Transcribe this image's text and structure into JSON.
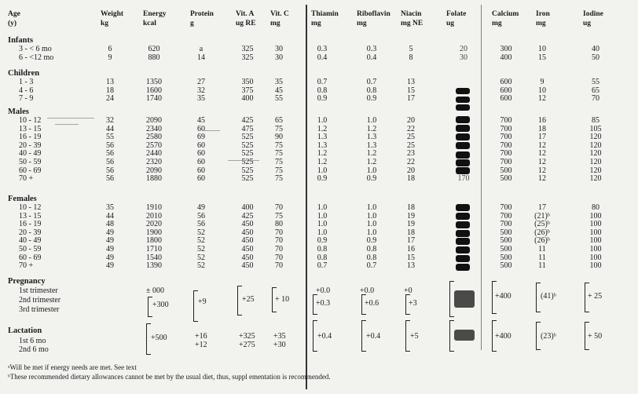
{
  "headers": [
    {
      "key": "age",
      "l1": "Age",
      "l2": "(y)"
    },
    {
      "key": "weight",
      "l1": "Weight",
      "l2": "kg"
    },
    {
      "key": "energy",
      "l1": "Energy",
      "l2": "kcal"
    },
    {
      "key": "protein",
      "l1": "Protein",
      "l2": "g"
    },
    {
      "key": "vita",
      "l1": "Vit. A",
      "l2": "ug RE"
    },
    {
      "key": "vitc",
      "l1": "Vit. C",
      "l2": "mg"
    },
    {
      "key": "thiamin",
      "l1": "Thiamin",
      "l2": "mg"
    },
    {
      "key": "riboflavin",
      "l1": "Riboflavin",
      "l2": "mg"
    },
    {
      "key": "niacin",
      "l1": "Niacin",
      "l2": "mg NE"
    },
    {
      "key": "folate",
      "l1": "Folate",
      "l2": "ug"
    },
    {
      "key": "calcium",
      "l1": "Calcium",
      "l2": "mg"
    },
    {
      "key": "iron",
      "l1": "Iron",
      "l2": "mg"
    },
    {
      "key": "iodine",
      "l1": "Iodine",
      "l2": "ug"
    }
  ],
  "sections": [
    {
      "title": "Infants",
      "rows": [
        {
          "label": "3 - < 6 mo",
          "v": [
            "6",
            "620",
            "a",
            "325",
            "30",
            "0.3",
            "0.3",
            "5",
            "20",
            "300",
            "10",
            "40"
          ]
        },
        {
          "label": "6 - <12 mo",
          "v": [
            "9",
            "880",
            "14",
            "325",
            "30",
            "0.4",
            "0.4",
            "8",
            "30",
            "400",
            "15",
            "50"
          ]
        }
      ]
    },
    {
      "title": "Children",
      "rows": [
        {
          "label": "1 - 3",
          "v": [
            "13",
            "1350",
            "27",
            "350",
            "35",
            "0.7",
            "0.7",
            "13",
            "",
            "600",
            "9",
            "55"
          ]
        },
        {
          "label": "4 - 6",
          "v": [
            "18",
            "1600",
            "32",
            "375",
            "45",
            "0.8",
            "0.8",
            "15",
            "",
            "600",
            "10",
            "65"
          ]
        },
        {
          "label": "7 - 9",
          "v": [
            "24",
            "1740",
            "35",
            "400",
            "55",
            "0.9",
            "0.9",
            "17",
            "",
            "600",
            "12",
            "70"
          ]
        }
      ]
    },
    {
      "title": "Males",
      "rows": [
        {
          "label": "10 - 12",
          "v": [
            "32",
            "2090",
            "45",
            "425",
            "65",
            "1.0",
            "1.0",
            "20",
            "",
            "700",
            "16",
            "85"
          ]
        },
        {
          "label": "13 - 15",
          "v": [
            "44",
            "2340",
            "60",
            "475",
            "75",
            "1.2",
            "1.2",
            "22",
            "",
            "700",
            "18",
            "105"
          ]
        },
        {
          "label": "16 - 19",
          "v": [
            "55",
            "2580",
            "69",
            "525",
            "90",
            "1.3",
            "1.3",
            "25",
            "",
            "700",
            "17",
            "120"
          ]
        },
        {
          "label": "20 - 39",
          "v": [
            "56",
            "2570",
            "60",
            "525",
            "75",
            "1.3",
            "1.3",
            "25",
            "",
            "700",
            "12",
            "120"
          ]
        },
        {
          "label": "40 - 49",
          "v": [
            "56",
            "2440",
            "60",
            "525",
            "75",
            "1.2",
            "1.2",
            "23",
            "",
            "700",
            "12",
            "120"
          ]
        },
        {
          "label": "50 - 59",
          "v": [
            "56",
            "2320",
            "60",
            "525",
            "75",
            "1.2",
            "1.2",
            "22",
            "",
            "700",
            "12",
            "120"
          ]
        },
        {
          "label": "60 - 69",
          "v": [
            "56",
            "2090",
            "60",
            "525",
            "75",
            "1.0",
            "1.0",
            "20",
            "",
            "500",
            "12",
            "120"
          ]
        },
        {
          "label": "70 +",
          "v": [
            "56",
            "1880",
            "60",
            "525",
            "75",
            "0.9",
            "0.9",
            "18",
            "170",
            "500",
            "12",
            "120"
          ]
        }
      ]
    },
    {
      "title": "Females",
      "rows": [
        {
          "label": "10 - 12",
          "v": [
            "35",
            "1910",
            "49",
            "400",
            "70",
            "1.0",
            "1.0",
            "18",
            "",
            "700",
            "17",
            "80"
          ]
        },
        {
          "label": "13 - 15",
          "v": [
            "44",
            "2010",
            "56",
            "425",
            "75",
            "1.0",
            "1.0",
            "19",
            "",
            "700",
            "(21)ᵇ",
            "100"
          ]
        },
        {
          "label": "16 - 19",
          "v": [
            "48",
            "2020",
            "56",
            "450",
            "80",
            "1.0",
            "1.0",
            "19",
            "",
            "700",
            "(25)ᵇ",
            "100"
          ]
        },
        {
          "label": "20 - 39",
          "v": [
            "49",
            "1900",
            "52",
            "450",
            "70",
            "1.0",
            "1.0",
            "18",
            "",
            "500",
            "(26)ᵇ",
            "100"
          ]
        },
        {
          "label": "40 - 49",
          "v": [
            "49",
            "1800",
            "52",
            "450",
            "70",
            "0.9",
            "0.9",
            "17",
            "",
            "500",
            "(26)ᵇ",
            "100"
          ]
        },
        {
          "label": "50 - 59",
          "v": [
            "49",
            "1710",
            "52",
            "450",
            "70",
            "0.8",
            "0.8",
            "16",
            "",
            "500",
            "11",
            "100"
          ]
        },
        {
          "label": "60 - 69",
          "v": [
            "49",
            "1540",
            "52",
            "450",
            "70",
            "0.8",
            "0.8",
            "15",
            "",
            "500",
            "11",
            "100"
          ]
        },
        {
          "label": "70 +",
          "v": [
            "49",
            "1390",
            "52",
            "450",
            "70",
            "0.7",
            "0.7",
            "13",
            "",
            "500",
            "11",
            "100"
          ]
        }
      ]
    }
  ],
  "pregnancy": {
    "title": "Pregnancy",
    "rows": [
      "1st trimester",
      "2nd trimester",
      "3rd trimester"
    ],
    "energy": [
      "± 000",
      "+300"
    ],
    "protein": "+9",
    "vita": "+25",
    "vitc": "+ 10",
    "thiamin": [
      "+0.0",
      "+0.3"
    ],
    "riboflavin": [
      "+0.0",
      "+0.6"
    ],
    "niacin": [
      "+0",
      "+3"
    ],
    "calcium": "+400",
    "iron": "(41)ᵇ",
    "iodine": "+ 25"
  },
  "lactation": {
    "title": "Lactation",
    "rows": [
      "1st 6 mo",
      "2nd 6 mo"
    ],
    "energy": "+500",
    "protein": [
      "+16",
      "+12"
    ],
    "vita": [
      "+325",
      "+275"
    ],
    "vitc": [
      "+35",
      "+30"
    ],
    "thiamin": "+0.4",
    "riboflavin": "+0.4",
    "niacin": "+5",
    "calcium": "+400",
    "iron": "(23)ᵇ",
    "iodine": "+ 50"
  },
  "footnotes": [
    "ᵃWill be met if energy needs are met.  See text",
    "ᵇThese recommended dietary allowances cannot be met by the usual diet, thus, suppl       ementation is recommended."
  ]
}
